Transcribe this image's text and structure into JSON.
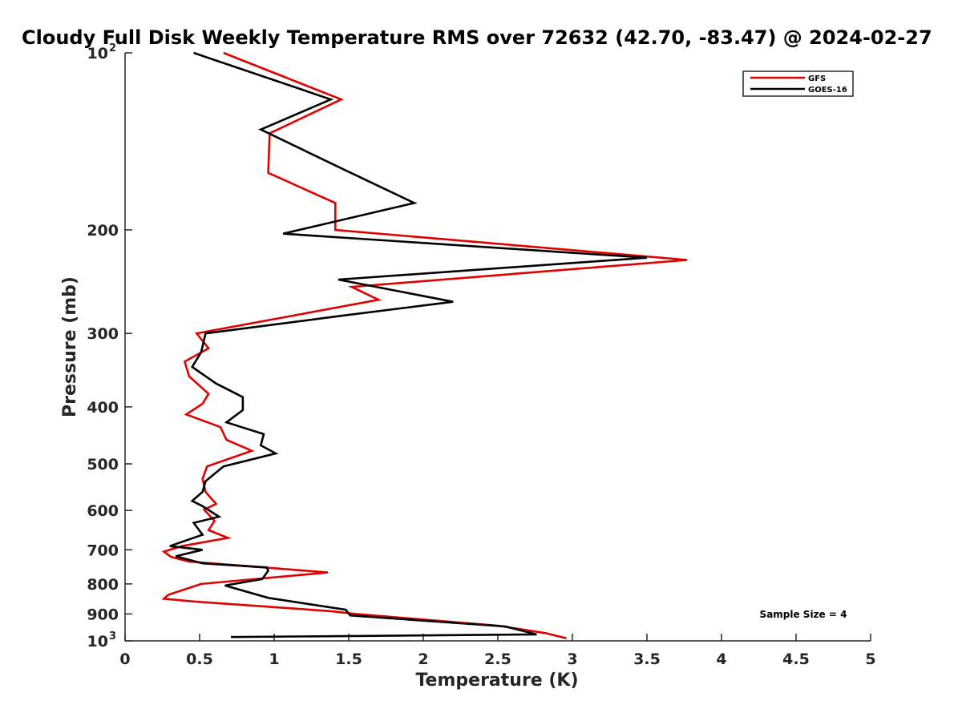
{
  "chart_data": {
    "type": "line",
    "title": "Cloudy Full Disk Weekly Temperature RMS over 72632 (42.70, -83.47) @ 2024-02-27",
    "xlabel": "Temperature (K)",
    "ylabel": "Pressure (mb)",
    "xlim": [
      0,
      5
    ],
    "ylim": [
      100,
      1000
    ],
    "y_scale": "log",
    "y_reversed": true,
    "x_ticks": [
      "0",
      "0.5",
      "1",
      "1.5",
      "2",
      "2.5",
      "3",
      "3.5",
      "4",
      "4.5",
      "5"
    ],
    "y_ticks": [
      {
        "value": 100,
        "base": "10",
        "exp": "2"
      },
      {
        "value": 200,
        "label": "200"
      },
      {
        "value": 300,
        "label": "300"
      },
      {
        "value": 400,
        "label": "400"
      },
      {
        "value": 500,
        "label": "500"
      },
      {
        "value": 600,
        "label": "600"
      },
      {
        "value": 700,
        "label": "700"
      },
      {
        "value": 800,
        "label": "800"
      },
      {
        "value": 900,
        "label": "900"
      },
      {
        "value": 1000,
        "base": "10",
        "exp": "3"
      }
    ],
    "legend_position": "top-right",
    "annotation": "Sample Size = 4",
    "series": [
      {
        "name": "GFS",
        "color": "#e00000",
        "points": [
          [
            0.66,
            100
          ],
          [
            1.45,
            120
          ],
          [
            0.97,
            137
          ],
          [
            0.96,
            160
          ],
          [
            1.41,
            180
          ],
          [
            1.41,
            200
          ],
          [
            3.77,
            225
          ],
          [
            1.52,
            250
          ],
          [
            1.7,
            263
          ],
          [
            0.48,
            300
          ],
          [
            0.56,
            318
          ],
          [
            0.4,
            335
          ],
          [
            0.43,
            355
          ],
          [
            0.56,
            380
          ],
          [
            0.52,
            395
          ],
          [
            0.41,
            412
          ],
          [
            0.64,
            433
          ],
          [
            0.68,
            455
          ],
          [
            0.85,
            475
          ],
          [
            0.55,
            505
          ],
          [
            0.52,
            530
          ],
          [
            0.54,
            558
          ],
          [
            0.61,
            585
          ],
          [
            0.53,
            598
          ],
          [
            0.6,
            625
          ],
          [
            0.56,
            648
          ],
          [
            0.69,
            668
          ],
          [
            0.38,
            690
          ],
          [
            0.26,
            705
          ],
          [
            0.31,
            720
          ],
          [
            0.43,
            733
          ],
          [
            1.36,
            765
          ],
          [
            0.51,
            800
          ],
          [
            0.29,
            835
          ],
          [
            0.26,
            848
          ],
          [
            0.46,
            857
          ],
          [
            1.38,
            890
          ],
          [
            1.55,
            900
          ],
          [
            2.5,
            942
          ],
          [
            2.82,
            970
          ],
          [
            2.96,
            990
          ]
        ]
      },
      {
        "name": "GOES-16",
        "color": "#000000",
        "points": [
          [
            0.46,
            100
          ],
          [
            1.38,
            120
          ],
          [
            0.91,
            135
          ],
          [
            1.47,
            158
          ],
          [
            1.94,
            180
          ],
          [
            1.06,
            203
          ],
          [
            3.5,
            223
          ],
          [
            1.43,
            243
          ],
          [
            2.2,
            265
          ],
          [
            1.45,
            280
          ],
          [
            0.54,
            300
          ],
          [
            0.51,
            323
          ],
          [
            0.45,
            342
          ],
          [
            0.61,
            365
          ],
          [
            0.79,
            385
          ],
          [
            0.79,
            405
          ],
          [
            0.68,
            425
          ],
          [
            0.93,
            445
          ],
          [
            0.91,
            465
          ],
          [
            1.01,
            480
          ],
          [
            0.66,
            505
          ],
          [
            0.54,
            535
          ],
          [
            0.52,
            558
          ],
          [
            0.45,
            578
          ],
          [
            0.52,
            590
          ],
          [
            0.63,
            615
          ],
          [
            0.46,
            630
          ],
          [
            0.52,
            660
          ],
          [
            0.3,
            690
          ],
          [
            0.52,
            700
          ],
          [
            0.34,
            718
          ],
          [
            0.52,
            738
          ],
          [
            0.95,
            750
          ],
          [
            0.96,
            760
          ],
          [
            0.92,
            785
          ],
          [
            0.67,
            805
          ],
          [
            0.96,
            845
          ],
          [
            1.48,
            885
          ],
          [
            1.51,
            905
          ],
          [
            2.55,
            945
          ],
          [
            2.76,
            975
          ],
          [
            0.71,
            985
          ]
        ]
      }
    ]
  }
}
